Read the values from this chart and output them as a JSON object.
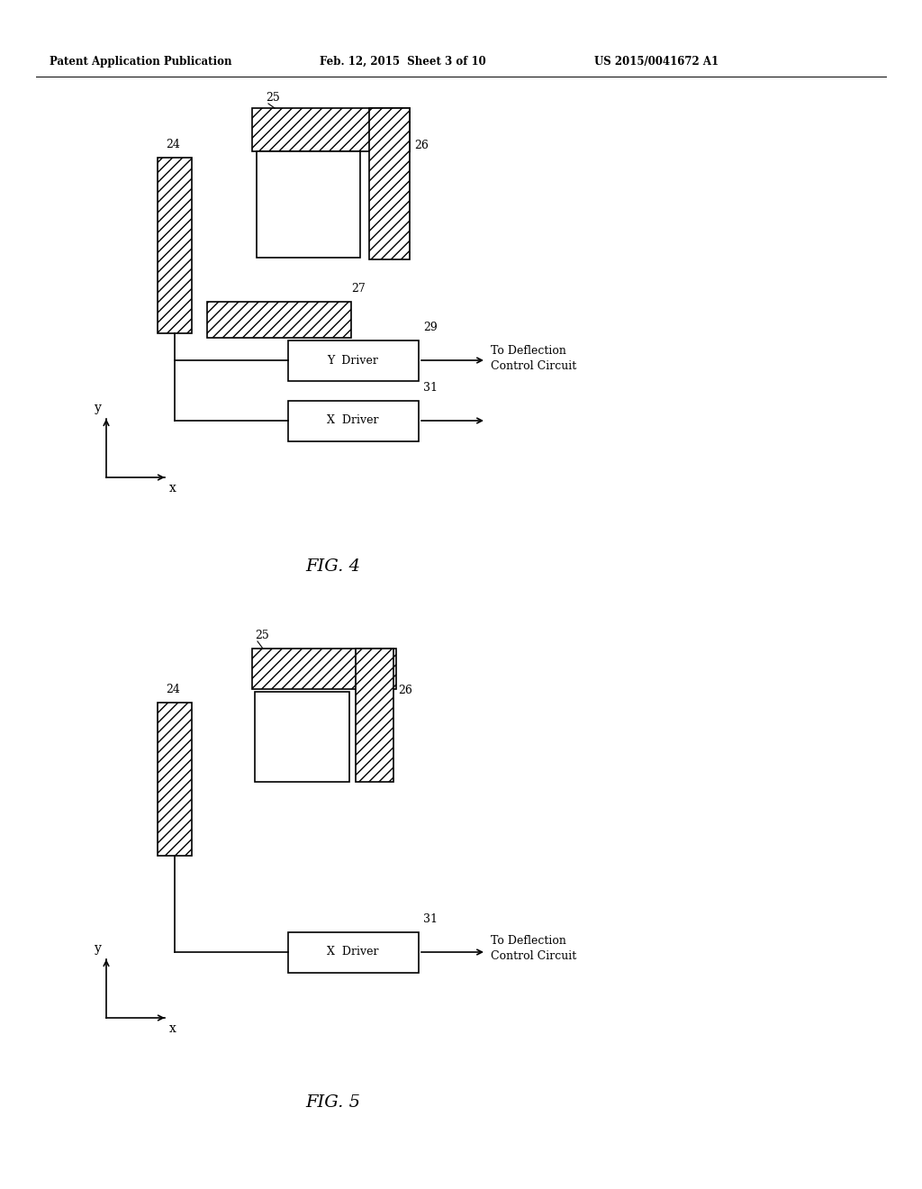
{
  "bg_color": "#ffffff",
  "header_text": "Patent Application Publication",
  "header_date": "Feb. 12, 2015  Sheet 3 of 10",
  "header_patent": "US 2015/0041672 A1",
  "fig4_label": "FIG. 4",
  "fig5_label": "FIG. 5",
  "hatch_pattern": "///",
  "line_color": "#000000",
  "text_color": "#000000"
}
